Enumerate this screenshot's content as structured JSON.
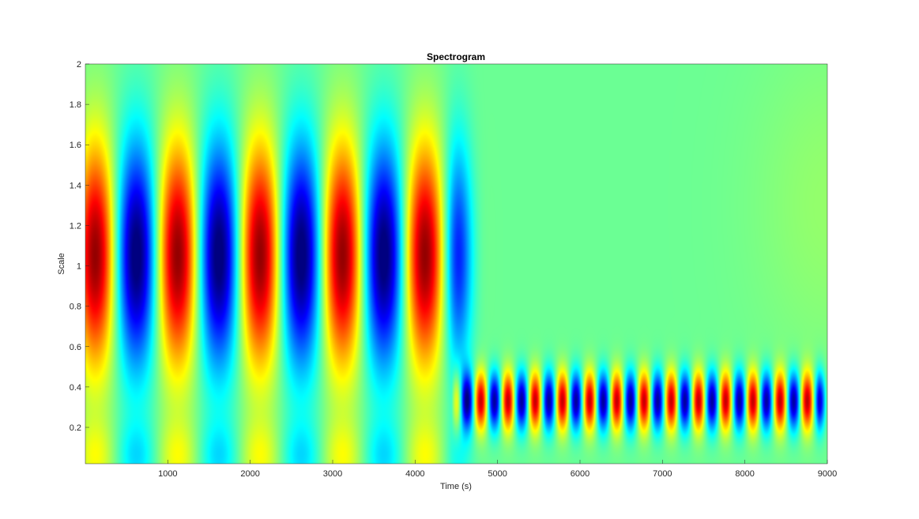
{
  "chart_data": {
    "type": "heatmap",
    "title": "Spectrogram",
    "xlabel": "Time (s)",
    "ylabel": "Scale",
    "xlim": [
      0,
      9000
    ],
    "ylim": [
      0.02,
      2
    ],
    "xticks": [
      1000,
      2000,
      3000,
      4000,
      5000,
      6000,
      7000,
      8000,
      9000
    ],
    "yticks": [
      0.2,
      0.4,
      0.6,
      0.8,
      1,
      1.2,
      1.4,
      1.6,
      1.8,
      2
    ],
    "colormap": "jet",
    "grid": false,
    "components": [
      {
        "t_start": 0,
        "t_end": 4500,
        "period_s": 1000,
        "peak_scale": 1.05,
        "note": "low-frequency segment"
      },
      {
        "t_start": 4500,
        "t_end": 8900,
        "period_s": 330,
        "peak_scale": 0.33,
        "note": "high-frequency segment"
      }
    ]
  }
}
